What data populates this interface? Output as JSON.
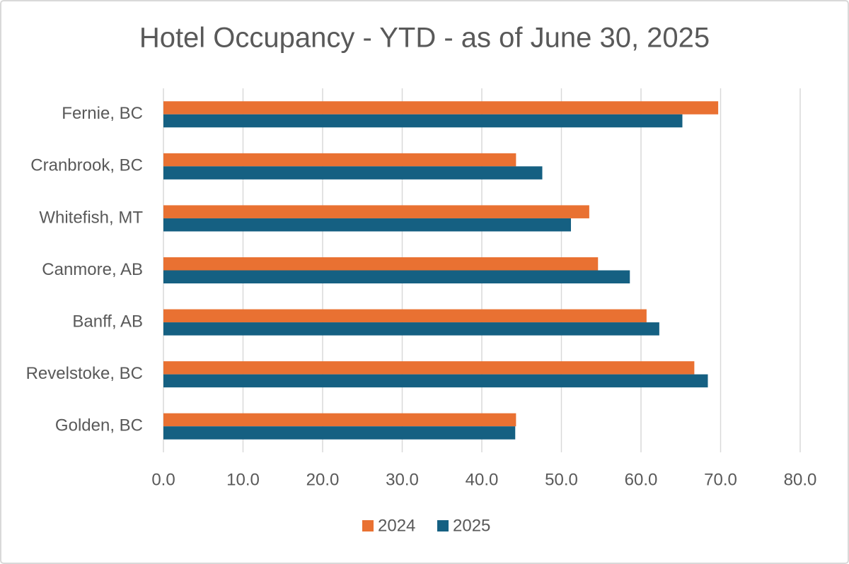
{
  "chart_data": {
    "type": "bar",
    "orientation": "horizontal",
    "title": "Hotel Occupancy - YTD - as of June 30, 2025",
    "categories": [
      "Fernie, BC",
      "Cranbrook, BC",
      "Whitefish, MT",
      "Canmore, AB",
      "Banff, AB",
      "Revelstoke, BC",
      "Golden, BC"
    ],
    "series": [
      {
        "name": "2024",
        "color": "#e97132",
        "values": [
          69.7,
          44.3,
          53.5,
          54.6,
          60.7,
          66.7,
          44.3
        ]
      },
      {
        "name": "2025",
        "color": "#156082",
        "values": [
          65.2,
          47.6,
          51.2,
          58.6,
          62.3,
          68.4,
          44.2
        ]
      }
    ],
    "xlim": [
      0,
      80
    ],
    "xticks": [
      {
        "value": 0,
        "label": "0.0"
      },
      {
        "value": 10,
        "label": "10.0"
      },
      {
        "value": 20,
        "label": "20.0"
      },
      {
        "value": 30,
        "label": "30.0"
      },
      {
        "value": 40,
        "label": "40.0"
      },
      {
        "value": 50,
        "label": "50.0"
      },
      {
        "value": 60,
        "label": "60.0"
      },
      {
        "value": 70,
        "label": "70.0"
      },
      {
        "value": 80,
        "label": "80.0"
      }
    ],
    "grid": true,
    "legend": "bottom"
  }
}
